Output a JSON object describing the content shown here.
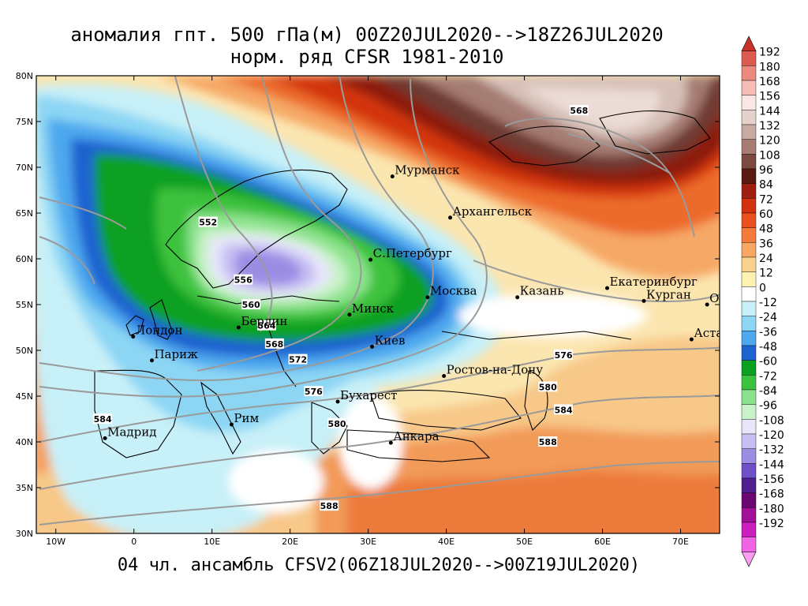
{
  "title_line1": "аномалия гпт. 500 гПа(м) 00Z20JUL2020-->18Z26JUL2020",
  "title_line2": "норм. ряд CFSR 1981-2010",
  "footer": "04 чл. ансамбль CFSV2(06Z18JUL2020-->00Z19JUL2020)",
  "lat_labels": [
    "80N",
    "75N",
    "70N",
    "65N",
    "60N",
    "55N",
    "50N",
    "45N",
    "40N",
    "35N",
    "30N"
  ],
  "lon_labels": [
    "10W",
    "0",
    "10E",
    "20E",
    "30E",
    "40E",
    "50E",
    "60E",
    "70E"
  ],
  "cities": [
    {
      "name": "Мурманск",
      "lon": 33.1,
      "lat": 69.0
    },
    {
      "name": "Архангельск",
      "lon": 40.5,
      "lat": 64.5
    },
    {
      "name": "С.Петербург",
      "lon": 30.3,
      "lat": 59.9
    },
    {
      "name": "Москва",
      "lon": 37.6,
      "lat": 55.8
    },
    {
      "name": "Казань",
      "lon": 49.1,
      "lat": 55.8
    },
    {
      "name": "Екатеринбург",
      "lon": 60.6,
      "lat": 56.8
    },
    {
      "name": "Курган",
      "lon": 65.3,
      "lat": 55.4
    },
    {
      "name": "Омск",
      "lon": 73.4,
      "lat": 55.0
    },
    {
      "name": "Астана",
      "lon": 71.4,
      "lat": 51.2
    },
    {
      "name": "Минск",
      "lon": 27.6,
      "lat": 53.9
    },
    {
      "name": "Берлин",
      "lon": 13.4,
      "lat": 52.5
    },
    {
      "name": "Лондон",
      "lon": -0.1,
      "lat": 51.5
    },
    {
      "name": "Париж",
      "lon": 2.3,
      "lat": 48.9
    },
    {
      "name": "Киев",
      "lon": 30.5,
      "lat": 50.4
    },
    {
      "name": "Ростов-на-Дону",
      "lon": 39.7,
      "lat": 47.2
    },
    {
      "name": "Бухарест",
      "lon": 26.1,
      "lat": 44.4
    },
    {
      "name": "Рим",
      "lon": 12.5,
      "lat": 41.9
    },
    {
      "name": "Мадрид",
      "lon": -3.7,
      "lat": 40.4
    },
    {
      "name": "Анкара",
      "lon": 32.9,
      "lat": 39.9
    }
  ],
  "contour_labels": [
    {
      "text": "552",
      "lon": 9.5,
      "lat": 64.0
    },
    {
      "text": "556",
      "lon": 14.0,
      "lat": 57.7
    },
    {
      "text": "560",
      "lon": 15.0,
      "lat": 55.0
    },
    {
      "text": "564",
      "lon": 17.0,
      "lat": 52.7
    },
    {
      "text": "568",
      "lon": 18.0,
      "lat": 50.7
    },
    {
      "text": "572",
      "lon": 21.0,
      "lat": 49.0
    },
    {
      "text": "576",
      "lon": 23.0,
      "lat": 45.5
    },
    {
      "text": "580",
      "lon": 26.0,
      "lat": 42.0
    },
    {
      "text": "584",
      "lon": -4.0,
      "lat": 42.5
    },
    {
      "text": "588",
      "lon": 25.0,
      "lat": 33.0
    },
    {
      "text": "576",
      "lon": 55.0,
      "lat": 49.5
    },
    {
      "text": "580",
      "lon": 53.0,
      "lat": 46.0
    },
    {
      "text": "584",
      "lon": 55.0,
      "lat": 43.5
    },
    {
      "text": "588",
      "lon": 53.0,
      "lat": 40.0
    },
    {
      "text": "568",
      "lon": 57.0,
      "lat": 76.2
    }
  ],
  "colorbar": {
    "labels": [
      "192",
      "180",
      "168",
      "156",
      "144",
      "132",
      "120",
      "108",
      "96",
      "84",
      "72",
      "60",
      "48",
      "36",
      "24",
      "12",
      "0",
      "-12",
      "-24",
      "-36",
      "-48",
      "-60",
      "-72",
      "-84",
      "-96",
      "-108",
      "-120",
      "-132",
      "-144",
      "-156",
      "-168",
      "-180",
      "-192"
    ],
    "colors": [
      "#c83228",
      "#dc5a4e",
      "#ec8a80",
      "#f8bcb6",
      "#fae6e2",
      "#e6d2cc",
      "#c9aaa0",
      "#a87c72",
      "#7c4a3e",
      "#5a1a10",
      "#a01e10",
      "#d2320f",
      "#e8501e",
      "#f47a3a",
      "#f8a864",
      "#fbd28c",
      "#fdf2b2",
      "#ffffff",
      "#c8f0f8",
      "#8cd6f4",
      "#4ea8ee",
      "#1e64d0",
      "#0aa020",
      "#3cc23c",
      "#8ce28c",
      "#c8f2c8",
      "#e8e6fa",
      "#c6c0f2",
      "#9c8ce4",
      "#7050c8",
      "#50208e",
      "#6c0670",
      "#a01098",
      "#cc1ebc",
      "#f064e6",
      "#fa9cf0"
    ]
  }
}
